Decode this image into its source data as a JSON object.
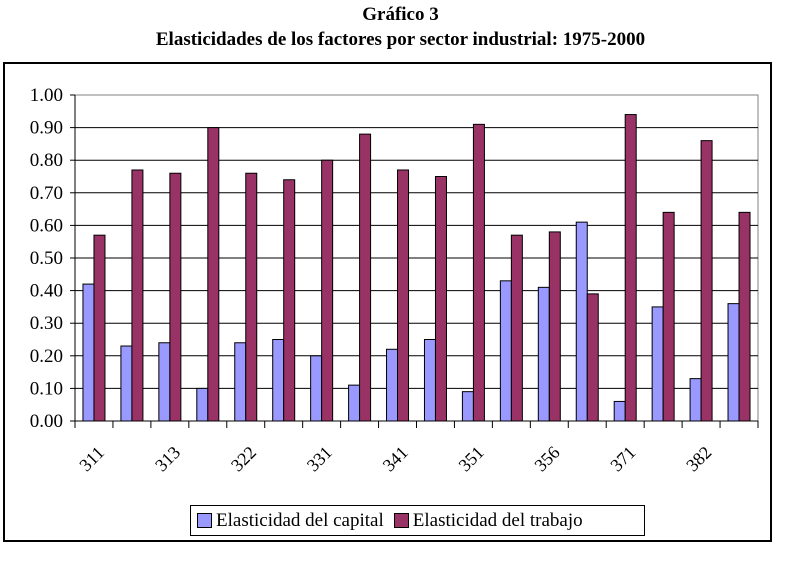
{
  "chart_data": {
    "type": "bar",
    "title": "Gráfico 3",
    "subtitle": "Elasticidades de los factores por sector industrial: 1975-2000",
    "xlabel": "",
    "ylabel": "",
    "ylim": [
      0,
      1.0
    ],
    "yticks": [
      "0.00",
      "0.10",
      "0.20",
      "0.30",
      "0.40",
      "0.50",
      "0.60",
      "0.70",
      "0.80",
      "0.90",
      "1.00"
    ],
    "categories": [
      "311",
      "",
      "313",
      "",
      "322",
      "",
      "331",
      "",
      "341",
      "",
      "351",
      "",
      "356",
      "",
      "371",
      "",
      "382",
      ""
    ],
    "grid": true,
    "legend_position": "bottom",
    "series": [
      {
        "name": "Elasticidad del capital",
        "color": "#9999FF",
        "values": [
          0.42,
          0.23,
          0.24,
          0.1,
          0.24,
          0.25,
          0.2,
          0.11,
          0.22,
          0.25,
          0.09,
          0.43,
          0.41,
          0.61,
          0.06,
          0.35,
          0.13,
          0.36
        ]
      },
      {
        "name": "Elasticidad del trabajo",
        "color": "#993366",
        "values": [
          0.57,
          0.77,
          0.76,
          0.9,
          0.76,
          0.74,
          0.8,
          0.88,
          0.77,
          0.75,
          0.91,
          0.57,
          0.58,
          0.39,
          0.94,
          0.64,
          0.86,
          0.64
        ]
      }
    ]
  }
}
